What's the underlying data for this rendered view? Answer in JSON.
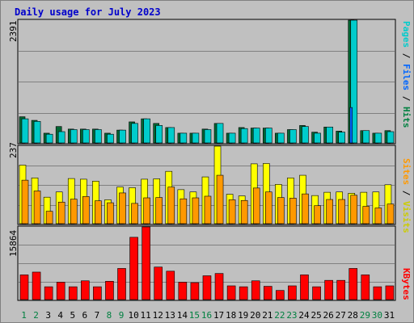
{
  "title": "Daily usage for July 2023",
  "chart_data": [
    {
      "type": "bar",
      "name": "top",
      "ymax_label": "2391",
      "ylim": [
        0,
        2391
      ],
      "grid": true,
      "categories": [
        "1",
        "2",
        "3",
        "4",
        "5",
        "6",
        "7",
        "8",
        "9",
        "10",
        "11",
        "12",
        "13",
        "14",
        "15",
        "16",
        "17",
        "18",
        "19",
        "20",
        "21",
        "22",
        "23",
        "24",
        "25",
        "26",
        "27",
        "28",
        "29",
        "30",
        "31"
      ],
      "series": [
        {
          "name": "Hits",
          "color": "#006633",
          "values": [
            510,
            440,
            190,
            320,
            270,
            270,
            270,
            190,
            250,
            410,
            470,
            380,
            300,
            190,
            190,
            270,
            380,
            190,
            300,
            290,
            290,
            190,
            260,
            340,
            210,
            310,
            230,
            2391,
            240,
            190,
            240
          ]
        },
        {
          "name": "Files",
          "color": "#00cccc",
          "values": [
            470,
            420,
            170,
            220,
            260,
            260,
            260,
            170,
            250,
            380,
            470,
            340,
            300,
            190,
            190,
            260,
            380,
            190,
            280,
            290,
            290,
            190,
            260,
            320,
            190,
            310,
            210,
            2391,
            240,
            190,
            220
          ]
        },
        {
          "name": "Pages",
          "color": "#0066ff",
          "values": [
            0,
            0,
            0,
            0,
            0,
            0,
            0,
            0,
            0,
            0,
            0,
            0,
            0,
            0,
            0,
            0,
            0,
            0,
            0,
            0,
            0,
            0,
            0,
            0,
            0,
            0,
            0,
            690,
            0,
            0,
            0
          ]
        }
      ]
    },
    {
      "type": "bar",
      "name": "middle",
      "ymax_label": "237",
      "ylim": [
        0,
        237
      ],
      "grid": true,
      "categories": [
        "1",
        "2",
        "3",
        "4",
        "5",
        "6",
        "7",
        "8",
        "9",
        "10",
        "11",
        "12",
        "13",
        "14",
        "15",
        "16",
        "17",
        "18",
        "19",
        "20",
        "21",
        "22",
        "23",
        "24",
        "25",
        "26",
        "27",
        "28",
        "29",
        "30",
        "31"
      ],
      "series": [
        {
          "name": "Visits",
          "color": "#ffff00",
          "values": [
            179,
            140,
            81,
            97,
            138,
            136,
            130,
            73,
            112,
            110,
            136,
            137,
            160,
            104,
            97,
            143,
            237,
            90,
            85,
            183,
            184,
            120,
            140,
            148,
            86,
            96,
            97,
            93,
            96,
            97,
            119
          ]
        },
        {
          "name": "Sites",
          "color": "#ff9900",
          "values": [
            133,
            100,
            38,
            66,
            75,
            83,
            70,
            64,
            94,
            62,
            79,
            80,
            112,
            76,
            79,
            84,
            148,
            73,
            71,
            109,
            97,
            80,
            78,
            91,
            55,
            74,
            74,
            87,
            53,
            48,
            60
          ]
        }
      ]
    },
    {
      "type": "bar",
      "name": "bottom",
      "ymax_label": "15864",
      "ylim": [
        0,
        15864
      ],
      "grid": true,
      "categories": [
        "1",
        "2",
        "3",
        "4",
        "5",
        "6",
        "7",
        "8",
        "9",
        "10",
        "11",
        "12",
        "13",
        "14",
        "15",
        "16",
        "17",
        "18",
        "19",
        "20",
        "21",
        "22",
        "23",
        "24",
        "25",
        "26",
        "27",
        "28",
        "29",
        "30",
        "31"
      ],
      "series": [
        {
          "name": "KBytes",
          "color": "#ff0000",
          "values": [
            5400,
            6000,
            2800,
            3800,
            2800,
            4100,
            2800,
            4000,
            6800,
            13600,
            15864,
            7100,
            6200,
            3800,
            3700,
            5200,
            5700,
            3000,
            2800,
            4100,
            2900,
            2000,
            3000,
            5400,
            2800,
            4200,
            4200,
            6800,
            5400,
            2800,
            3000
          ]
        }
      ]
    }
  ],
  "x_labels": [
    {
      "text": "1",
      "color": "#008040"
    },
    {
      "text": "2",
      "color": "#008040"
    },
    {
      "text": "3",
      "color": "#000000"
    },
    {
      "text": "4",
      "color": "#000000"
    },
    {
      "text": "5",
      "color": "#000000"
    },
    {
      "text": "6",
      "color": "#000000"
    },
    {
      "text": "7",
      "color": "#000000"
    },
    {
      "text": "8",
      "color": "#008040"
    },
    {
      "text": "9",
      "color": "#008040"
    },
    {
      "text": "10",
      "color": "#000000"
    },
    {
      "text": "11",
      "color": "#000000"
    },
    {
      "text": "12",
      "color": "#000000"
    },
    {
      "text": "13",
      "color": "#000000"
    },
    {
      "text": "14",
      "color": "#000000"
    },
    {
      "text": "15",
      "color": "#008040"
    },
    {
      "text": "16",
      "color": "#008040"
    },
    {
      "text": "17",
      "color": "#000000"
    },
    {
      "text": "18",
      "color": "#000000"
    },
    {
      "text": "19",
      "color": "#000000"
    },
    {
      "text": "20",
      "color": "#000000"
    },
    {
      "text": "21",
      "color": "#000000"
    },
    {
      "text": "22",
      "color": "#008040"
    },
    {
      "text": "23",
      "color": "#008040"
    },
    {
      "text": "24",
      "color": "#000000"
    },
    {
      "text": "25",
      "color": "#000000"
    },
    {
      "text": "26",
      "color": "#000000"
    },
    {
      "text": "27",
      "color": "#000000"
    },
    {
      "text": "28",
      "color": "#000000"
    },
    {
      "text": "29",
      "color": "#008040"
    },
    {
      "text": "30",
      "color": "#008040"
    },
    {
      "text": "31",
      "color": "#000000"
    }
  ],
  "right_labels": {
    "top": [
      {
        "text": "Pages",
        "color": "#00cccc"
      },
      {
        "text": " / ",
        "color": "#000000"
      },
      {
        "text": "Files",
        "color": "#0066ff"
      },
      {
        "text": " / ",
        "color": "#000000"
      },
      {
        "text": "Hits",
        "color": "#008040"
      }
    ],
    "middle": [
      {
        "text": "Sites",
        "color": "#ff9900"
      },
      {
        "text": " / ",
        "color": "#000000"
      },
      {
        "text": "Visits",
        "color": "#cccc00"
      }
    ],
    "bottom": [
      {
        "text": "KBytes",
        "color": "#ff0000"
      }
    ]
  }
}
